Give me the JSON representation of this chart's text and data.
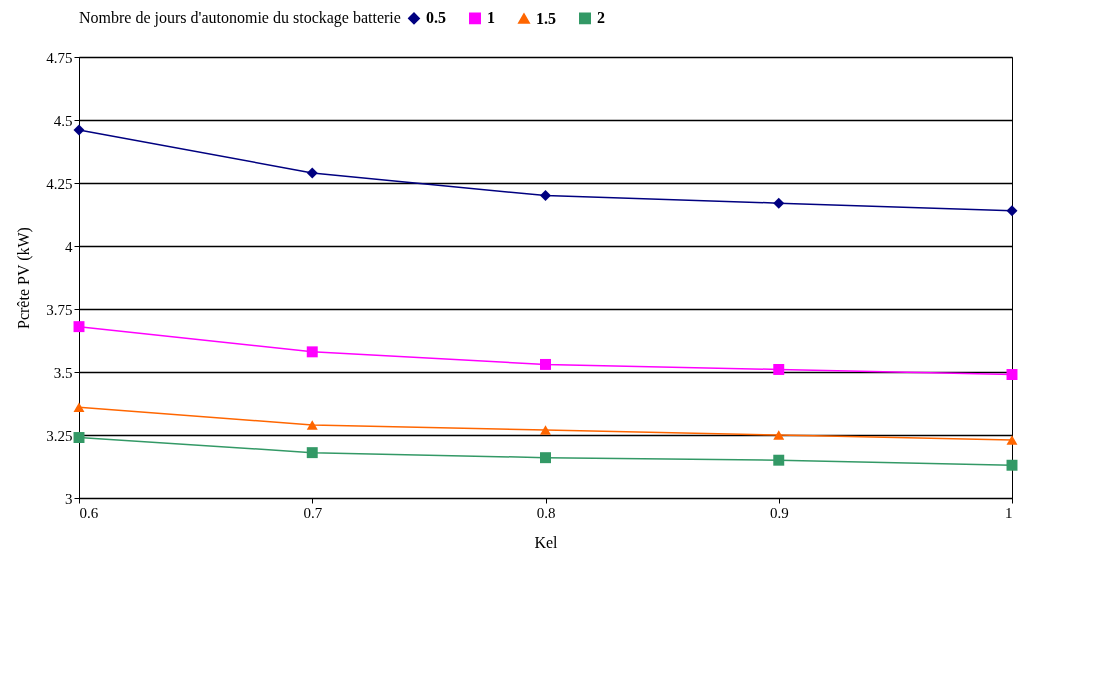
{
  "chart_data": {
    "type": "line",
    "xlabel": "Kel",
    "ylabel": "Pcrête PV (kW)",
    "legend_title": "Nombre de jours d'autonomie du stockage batterie",
    "x": [
      0.6,
      0.7,
      0.8,
      0.9,
      1
    ],
    "series": [
      {
        "name": "0.5",
        "color": "#000080",
        "marker": "diamond",
        "values": [
          4.46,
          4.29,
          4.2,
          4.17,
          4.14
        ]
      },
      {
        "name": "1",
        "color": "#ff00ff",
        "marker": "square",
        "values": [
          3.68,
          3.58,
          3.53,
          3.51,
          3.49
        ]
      },
      {
        "name": "1.5",
        "color": "#ff6600",
        "marker": "triangle",
        "values": [
          3.36,
          3.29,
          3.27,
          3.25,
          3.23
        ]
      },
      {
        "name": "2",
        "color": "#339966",
        "marker": "square",
        "values": [
          3.24,
          3.18,
          3.16,
          3.15,
          3.13
        ]
      }
    ],
    "xlim": [
      0.6,
      1
    ],
    "xticks": [
      0.6,
      0.7,
      0.8,
      0.9,
      1
    ],
    "ylim": [
      3,
      4.75
    ],
    "yticks": [
      3,
      3.25,
      3.5,
      3.75,
      4,
      4.25,
      4.5,
      4.75
    ],
    "grid": "y",
    "legend": "top",
    "line_style": "solid"
  }
}
